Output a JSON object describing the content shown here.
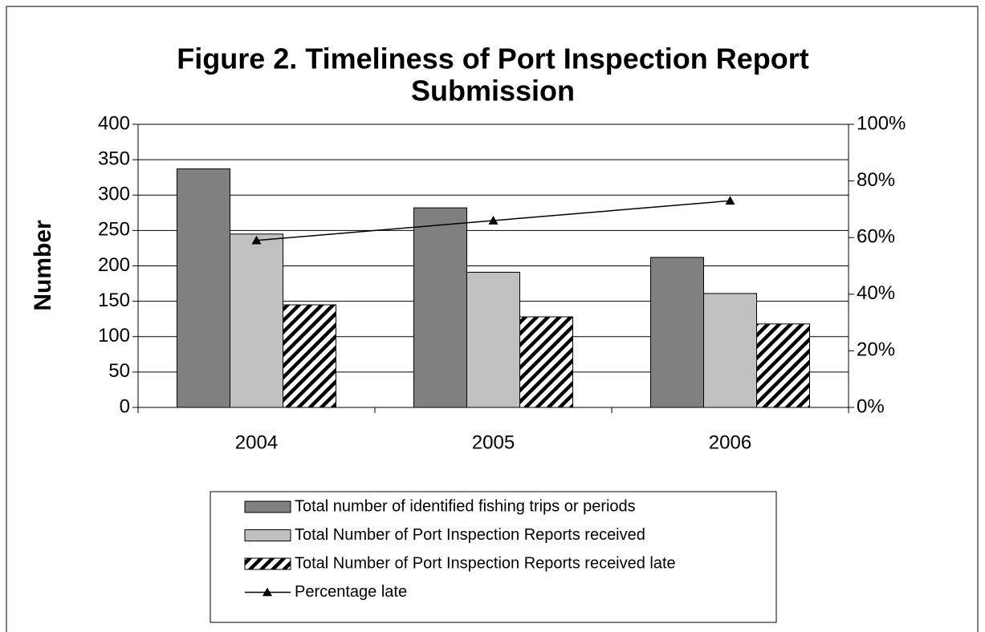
{
  "chart_data": {
    "type": "bar",
    "title": [
      "Figure 2.  Timeliness of Port Inspection Report",
      "Submission"
    ],
    "y_label": "Number",
    "categories": [
      "2004",
      "2005",
      "2006"
    ],
    "series": [
      {
        "name": "Total number of identified fishing trips or periods",
        "color": "#808080",
        "values": [
          337,
          282,
          212
        ]
      },
      {
        "name": "Total Number of Port Inspection Reports received",
        "color": "#c0c0c0",
        "values": [
          245,
          191,
          161
        ]
      },
      {
        "name": "Total Number of Port Inspection Reports received late",
        "color": "#ffffff",
        "pattern": "diagonal",
        "values": [
          145,
          128,
          118
        ]
      },
      {
        "name": "Percentage late",
        "type": "line",
        "axis": "y2",
        "color": "#000000",
        "marker": "triangle",
        "values": [
          59,
          66,
          73
        ]
      }
    ],
    "ylim": [
      0,
      400
    ],
    "yticks": [
      0,
      50,
      100,
      150,
      200,
      250,
      300,
      350,
      400
    ],
    "y2lim": [
      0,
      100
    ],
    "y2ticks": [
      {
        "value": 0,
        "label": "0%"
      },
      {
        "value": 20,
        "label": "20%"
      },
      {
        "value": 40,
        "label": "40%"
      },
      {
        "value": 60,
        "label": "60%"
      },
      {
        "value": 80,
        "label": "80%"
      },
      {
        "value": 100,
        "label": "100%"
      }
    ],
    "grid": true,
    "legend": "bottom"
  }
}
